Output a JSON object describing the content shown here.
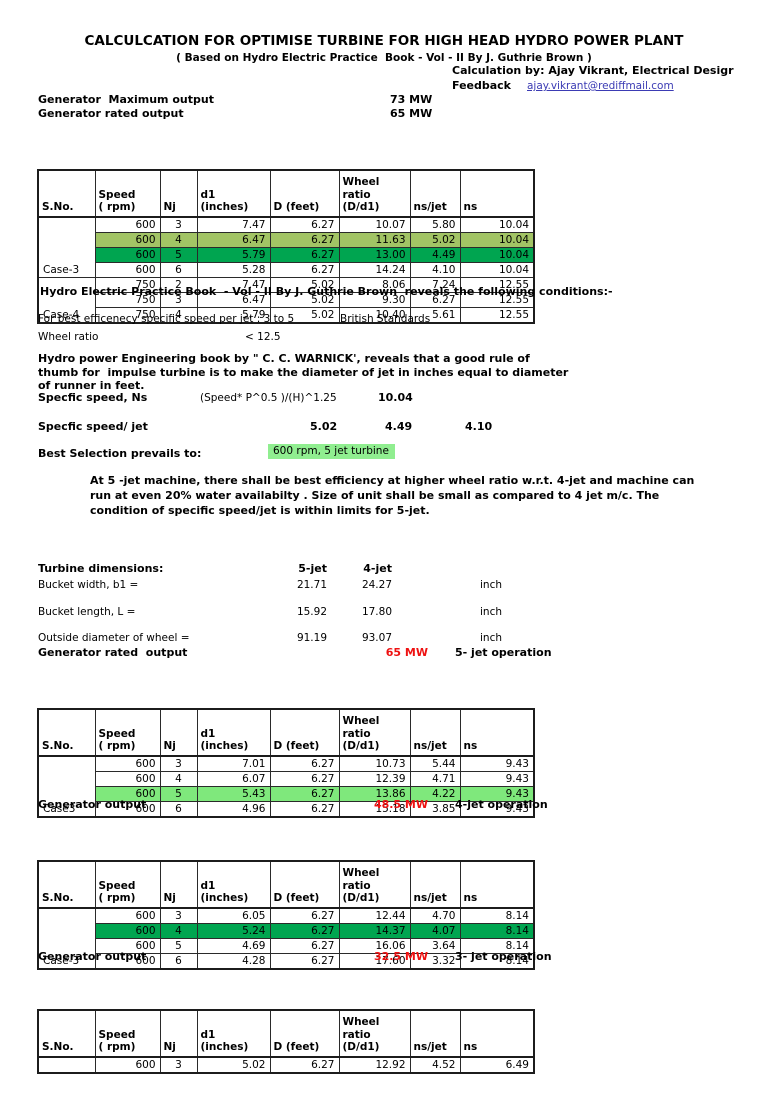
{
  "header": {
    "title": "CALCULCATION FOR OPTIMISE TURBINE FOR HIGH HEAD HYDRO POWER PLANT",
    "subtitle": "( Based on Hydro Electric Practice  Book - Vol - II By J. Guthrie Brown )",
    "calculation_by": "Calculation by: Ajay Vikrant, Electrical Desigr",
    "feedback_label": "Feedback",
    "feedback_email": "ajay.vikrant@rediffmail.com"
  },
  "generator": {
    "max_label": "Generator  Maximum output",
    "max_value": "73 MW",
    "rated_label": "Generator rated output",
    "rated_value": "65 MW"
  },
  "table_headers": [
    "S.No.",
    "Speed\n( rpm)",
    "Nj",
    "d1 (inches)",
    "D (feet)",
    "Wheel ratio\n(D/d1)",
    "ns/jet",
    "ns"
  ],
  "tables": [
    {
      "groups": [
        {
          "label": "Case-3",
          "rows": [
            {
              "bg": "",
              "cells": [
                "600",
                "3",
                "7.47",
                "6.27",
                "10.07",
                "5.80",
                "10.04"
              ]
            },
            {
              "bg": "olive",
              "cells": [
                "600",
                "4",
                "6.47",
                "6.27",
                "11.63",
                "5.02",
                "10.04"
              ]
            },
            {
              "bg": "green",
              "cells": [
                "600",
                "5",
                "5.79",
                "6.27",
                "13.00",
                "4.49",
                "10.04"
              ]
            },
            {
              "bg": "",
              "cells": [
                "600",
                "6",
                "5.28",
                "6.27",
                "14.24",
                "4.10",
                "10.04"
              ]
            }
          ]
        },
        {
          "label": "Case-4",
          "rows": [
            {
              "bg": "",
              "cells": [
                "750",
                "2",
                "7.47",
                "5.02",
                "8.06",
                "7.24",
                "12.55"
              ]
            },
            {
              "bg": "",
              "cells": [
                "750",
                "3",
                "6.47",
                "5.02",
                "9.30",
                "6.27",
                "12.55"
              ]
            },
            {
              "bg": "",
              "cells": [
                "750",
                "4",
                "5.79",
                "5.02",
                "10.40",
                "5.61",
                "12.55"
              ]
            }
          ]
        }
      ]
    },
    {
      "groups": [
        {
          "label": "Case3",
          "rows": [
            {
              "bg": "",
              "cells": [
                "600",
                "3",
                "7.01",
                "6.27",
                "10.73",
                "5.44",
                "9.43"
              ]
            },
            {
              "bg": "",
              "cells": [
                "600",
                "4",
                "6.07",
                "6.27",
                "12.39",
                "4.71",
                "9.43"
              ]
            },
            {
              "bg": "lightgreen",
              "cells": [
                "600",
                "5",
                "5.43",
                "6.27",
                "13.86",
                "4.22",
                "9.43"
              ]
            },
            {
              "bg": "",
              "cells": [
                "600",
                "6",
                "4.96",
                "6.27",
                "15.18",
                "3.85",
                "9.43"
              ]
            }
          ]
        }
      ]
    },
    {
      "groups": [
        {
          "label": "Case-3",
          "rows": [
            {
              "bg": "",
              "cells": [
                "600",
                "3",
                "6.05",
                "6.27",
                "12.44",
                "4.70",
                "8.14"
              ]
            },
            {
              "bg": "green",
              "cells": [
                "600",
                "4",
                "5.24",
                "6.27",
                "14.37",
                "4.07",
                "8.14"
              ]
            },
            {
              "bg": "",
              "cells": [
                "600",
                "5",
                "4.69",
                "6.27",
                "16.06",
                "3.64",
                "8.14"
              ]
            },
            {
              "bg": "",
              "cells": [
                "600",
                "6",
                "4.28",
                "6.27",
                "17.60",
                "3.32",
                "8.14"
              ]
            }
          ]
        }
      ]
    },
    {
      "groups": [
        {
          "label": "",
          "rows": [
            {
              "bg": "",
              "cells": [
                "600",
                "3",
                "5.02",
                "6.27",
                "12.92",
                "4.52",
                "6.49"
              ]
            }
          ]
        }
      ]
    }
  ],
  "conditions": {
    "heading": "Hydro Electric Practice Book  - Vol - II By J. Guthrie Brown  reveals the following conditions:-",
    "line1_label": "For best efficenecy specific speed per jet : 3 to 5",
    "line1_note": "British Standards",
    "line2_label": "Wheel ratio",
    "line2_value": "< 12.5"
  },
  "warnick_note": "Hydro power Engineering book by \" C. C. WARNICK', reveals that a good rule of\nthumb for  impulse turbine is to make the diameter of jet in inches equal to diameter\nof runner in feet.",
  "ns": {
    "label": "Specfic speed, Ns",
    "formula": "(Speed* P^0.5 )/(H)^1.25",
    "value": "10.04"
  },
  "ns_per_jet": {
    "label": "Specfic speed/ jet",
    "v1": "5.02",
    "v2": "4.49",
    "v3": "4.10"
  },
  "best_selection": {
    "label": "Best Selection prevails to:",
    "value": "600 rpm, 5 jet turbine"
  },
  "summary_note": "At 5 -jet machine, there shall be best efficiency at higher wheel ratio w.r.t. 4-jet and machine can\nrun at even 20% water availabilty . Size of unit shall be small as compared to 4 jet m/c. The\ncondition of specific speed/jet is within limits for 5-jet.",
  "dimensions": {
    "title": "Turbine dimensions:",
    "col1": "5-jet",
    "col2": "4-jet",
    "rows": [
      {
        "label": "Bucket width, b1 =",
        "v1": "21.71",
        "v2": "24.27",
        "unit": "inch"
      },
      {
        "label": "Bucket length, L =",
        "v1": "15.92",
        "v2": "17.80",
        "unit": "inch"
      },
      {
        "label": "Outside diameter of wheel =",
        "v1": "91.19",
        "v2": "93.07",
        "unit": "inch"
      }
    ]
  },
  "outputs": [
    {
      "label": "Generator rated  output",
      "value": "65 MW",
      "operation": "5- jet operation"
    },
    {
      "label": "Generator output",
      "value": "48.5 MW",
      "operation": "4-jet operation"
    },
    {
      "label": "Generator output",
      "value": "32.5 MW",
      "operation": "3- jet operation"
    }
  ],
  "colors": {
    "accent_red": "#ee1111",
    "row_olive": "#a2c465",
    "row_green": "#00a550",
    "row_lightgreen": "#7fe87c",
    "highlight_green": "#90ee90",
    "link_blue": "#3b3bb4"
  }
}
